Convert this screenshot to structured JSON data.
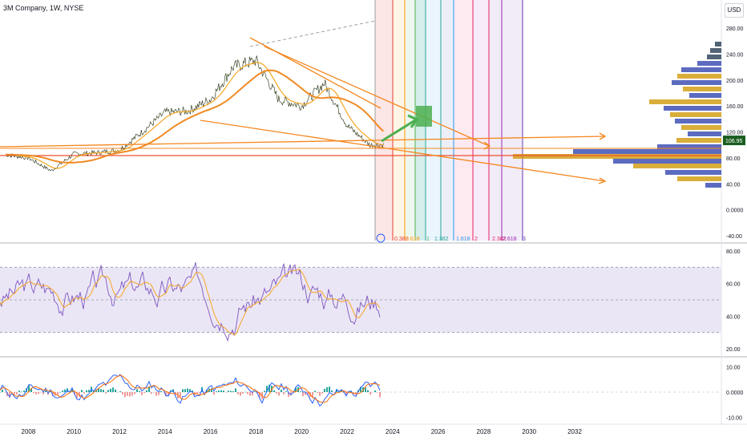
{
  "header": {
    "title": "3M Company, 1W, NYSE",
    "currency": "USD"
  },
  "colors": {
    "price": "#1f2c0a",
    "ema_fast": "#f5a623",
    "ema_slow": "#f08a24",
    "trend": "#f5871f",
    "support": "#f05030",
    "rsi": "#7e57c2",
    "rsi_ma": "#f5a623",
    "rsi_band": "#ebe6f5",
    "badge": "#1b5e20"
  },
  "chart_data": [
    {
      "type": "line",
      "pane": "price",
      "yticks": [
        "280.00",
        "240.00",
        "200.00",
        "160.00",
        "120.00",
        "80.00",
        "40.00",
        "0.0000",
        "-40.00"
      ],
      "last_price_label": "106.95",
      "last_price": 106.95,
      "ylim": [
        -40,
        280
      ],
      "fib_labels": [
        "0.382",
        "0.618",
        "1",
        "1.382",
        "1.618",
        "2",
        "2.382",
        "2.618",
        "3"
      ],
      "fib_colors": [
        "#e53935",
        "#ff9800",
        "#4caf50",
        "#26a69a",
        "#2196f3",
        "#e91e63",
        "#e91e63",
        "#9c27b0",
        "#673ab7"
      ],
      "series": [
        {
          "values_by_year": {
            "2007": 85,
            "2008": 80,
            "2009": 60,
            "2010": 86,
            "2011": 88,
            "2012": 92,
            "2013": 120,
            "2014": 150,
            "2015": 152,
            "2016": 170,
            "2017": 220,
            "2018": 230,
            "2019": 170,
            "2020": 160,
            "2021": 195,
            "2022": 130,
            "2023": 100
          }
        }
      ]
    },
    {
      "type": "line",
      "pane": "rsi",
      "yticks": [
        "80.00",
        "60.00",
        "40.00",
        "20.00"
      ],
      "ylim": [
        20,
        80
      ],
      "bands": [
        30,
        70
      ]
    },
    {
      "type": "bar",
      "pane": "macd",
      "yticks": [
        "10.00",
        "0.0000",
        "-10.00"
      ],
      "ylim": [
        -12,
        12
      ]
    }
  ],
  "x_axis": [
    "2008",
    "2010",
    "2012",
    "2014",
    "2016",
    "2018",
    "2020",
    "2022",
    "2024",
    "2026",
    "2028",
    "2030",
    "2032"
  ]
}
